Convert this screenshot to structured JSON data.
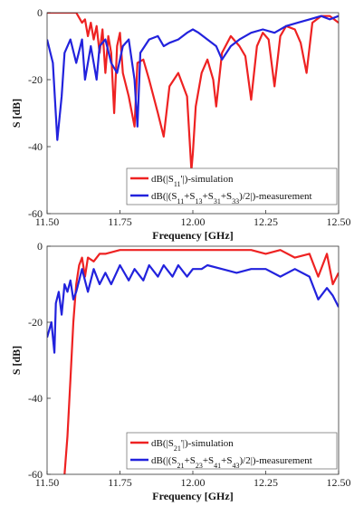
{
  "chart_data": [
    {
      "type": "line",
      "xlabel": "Frequency [GHz]",
      "ylabel": "S [dB]",
      "xlim": [
        11.5,
        12.5
      ],
      "ylim": [
        -60,
        0
      ],
      "xticks": [
        "11.50",
        "11.75",
        "12.00",
        "12.25",
        "12.50"
      ],
      "yticks": [
        "0",
        "-20",
        "-40",
        "-60"
      ],
      "grid": false,
      "legend_position": "bottom-right",
      "series": [
        {
          "name": "dB(|S11'|)-simulation",
          "color": "#ee2222",
          "x": [
            11.5,
            11.55,
            11.6,
            11.62,
            11.63,
            11.64,
            11.65,
            11.66,
            11.67,
            11.68,
            11.69,
            11.7,
            11.71,
            11.72,
            11.73,
            11.74,
            11.75,
            11.76,
            11.78,
            11.8,
            11.81,
            11.83,
            11.85,
            11.88,
            11.9,
            11.92,
            11.95,
            11.98,
            11.995,
            12.0,
            12.01,
            12.03,
            12.05,
            12.07,
            12.08,
            12.1,
            12.13,
            12.16,
            12.18,
            12.2,
            12.22,
            12.24,
            12.26,
            12.28,
            12.3,
            12.32,
            12.35,
            12.37,
            12.39,
            12.41,
            12.44,
            12.47,
            12.5
          ],
          "y": [
            0,
            0,
            0,
            -3,
            -2,
            -7,
            -3,
            -8,
            -4,
            -12,
            -5,
            -18,
            -7,
            -12,
            -30,
            -10,
            -6,
            -18,
            -25,
            -34,
            -15,
            -14,
            -20,
            -30,
            -37,
            -22,
            -18,
            -25,
            -47,
            -42,
            -28,
            -18,
            -14,
            -20,
            -28,
            -12,
            -7,
            -10,
            -13,
            -26,
            -10,
            -6,
            -8,
            -22,
            -7,
            -4,
            -5,
            -9,
            -18,
            -3,
            -1,
            -1,
            -3
          ]
        },
        {
          "name": "dB(|(S11+S13+S31+S33)/2|)-measurement",
          "color": "#2222dd",
          "x": [
            11.5,
            11.52,
            11.535,
            11.55,
            11.56,
            11.58,
            11.6,
            11.62,
            11.63,
            11.65,
            11.67,
            11.68,
            11.7,
            11.72,
            11.74,
            11.76,
            11.78,
            11.8,
            11.81,
            11.82,
            11.85,
            11.88,
            11.9,
            11.92,
            11.95,
            11.98,
            12.0,
            12.02,
            12.05,
            12.08,
            12.1,
            12.13,
            12.16,
            12.2,
            12.24,
            12.28,
            12.32,
            12.36,
            12.4,
            12.44,
            12.47,
            12.5
          ],
          "y": [
            -8,
            -15,
            -38,
            -25,
            -12,
            -8,
            -15,
            -8,
            -20,
            -10,
            -20,
            -10,
            -8,
            -15,
            -18,
            -10,
            -8,
            -20,
            -34,
            -12,
            -8,
            -7,
            -10,
            -9,
            -8,
            -6,
            -5,
            -6,
            -8,
            -10,
            -14,
            -10,
            -8,
            -6,
            -5,
            -6,
            -4,
            -3,
            -2,
            -1,
            -2,
            -1
          ]
        }
      ],
      "legend": [
        {
          "prefix": "dB(|S",
          "sub": "11",
          "suffix": "'|)-simulation"
        },
        {
          "parts": [
            "dB(|(S",
            "11",
            "+S",
            "13",
            "+S",
            "31",
            "+S",
            "33",
            ")/2|)-measurement"
          ]
        }
      ]
    },
    {
      "type": "line",
      "xlabel": "Frequency [GHz]",
      "ylabel": "S [dB]",
      "xlim": [
        11.5,
        12.5
      ],
      "ylim": [
        -60,
        0
      ],
      "xticks": [
        "11.50",
        "11.75",
        "12.00",
        "12.25",
        "12.50"
      ],
      "yticks": [
        "0",
        "-20",
        "-40",
        "-60"
      ],
      "grid": false,
      "legend_position": "bottom-right",
      "series": [
        {
          "name": "dB(|S21'|)-simulation",
          "color": "#ee2222",
          "x": [
            11.56,
            11.57,
            11.58,
            11.59,
            11.6,
            11.61,
            11.62,
            11.63,
            11.64,
            11.66,
            11.68,
            11.7,
            11.75,
            11.8,
            11.85,
            11.9,
            11.95,
            12.0,
            12.05,
            12.1,
            12.15,
            12.2,
            12.25,
            12.3,
            12.35,
            12.4,
            12.43,
            12.46,
            12.48,
            12.5
          ],
          "y": [
            -60,
            -50,
            -35,
            -20,
            -10,
            -5,
            -3,
            -8,
            -3,
            -4,
            -2,
            -2,
            -1,
            -1,
            -1,
            -1,
            -1,
            -1,
            -1,
            -1,
            -1,
            -1,
            -2,
            -1,
            -3,
            -2,
            -8,
            -2,
            -10,
            -7
          ]
        },
        {
          "name": "dB(|(S21+S23+S41+S43)/2|)-measurement",
          "color": "#2222dd",
          "x": [
            11.5,
            11.515,
            11.525,
            11.53,
            11.54,
            11.55,
            11.56,
            11.57,
            11.58,
            11.59,
            11.6,
            11.62,
            11.64,
            11.66,
            11.68,
            11.7,
            11.72,
            11.75,
            11.78,
            11.8,
            11.83,
            11.85,
            11.88,
            11.9,
            11.93,
            11.95,
            11.98,
            12.0,
            12.03,
            12.05,
            12.1,
            12.15,
            12.2,
            12.25,
            12.3,
            12.35,
            12.4,
            12.43,
            12.46,
            12.48,
            12.5
          ],
          "y": [
            -24,
            -20,
            -28,
            -15,
            -12,
            -18,
            -10,
            -12,
            -9,
            -14,
            -12,
            -6,
            -12,
            -6,
            -10,
            -7,
            -10,
            -5,
            -9,
            -6,
            -9,
            -5,
            -8,
            -5,
            -8,
            -5,
            -8,
            -6,
            -6,
            -5,
            -6,
            -7,
            -6,
            -6,
            -8,
            -6,
            -8,
            -14,
            -11,
            -13,
            -16
          ]
        }
      ],
      "legend": [
        {
          "prefix": "dB(|S",
          "sub": "21",
          "suffix": "'|)-simulation"
        },
        {
          "parts": [
            "dB(|(S",
            "21",
            "+S",
            "23",
            "+S",
            "41",
            "+S",
            "43",
            ")/2|)-measurement"
          ]
        }
      ]
    }
  ]
}
